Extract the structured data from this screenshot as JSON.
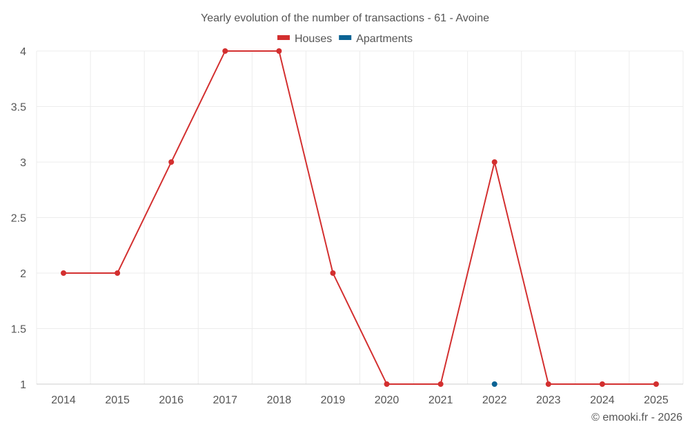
{
  "chart_data": {
    "type": "line",
    "title": "Yearly evolution of the number of transactions - 61 - Avoine",
    "xlabel": "",
    "ylabel": "",
    "categories": [
      "2014",
      "2015",
      "2016",
      "2017",
      "2018",
      "2019",
      "2020",
      "2021",
      "2022",
      "2023",
      "2024",
      "2025"
    ],
    "ylim": [
      1,
      4
    ],
    "yticks": [
      "1",
      "1.5",
      "2",
      "2.5",
      "3",
      "3.5",
      "4"
    ],
    "grid": true,
    "legend_position": "top-center",
    "series": [
      {
        "name": "Houses",
        "color": "#d32f2f",
        "values": [
          2,
          2,
          3,
          4,
          4,
          2,
          1,
          1,
          3,
          1,
          1,
          1
        ]
      },
      {
        "name": "Apartments",
        "color": "#0b6394",
        "values": [
          null,
          null,
          null,
          null,
          null,
          null,
          null,
          null,
          1,
          null,
          null,
          null
        ]
      }
    ]
  },
  "credit": "© emooki.fr - 2026"
}
